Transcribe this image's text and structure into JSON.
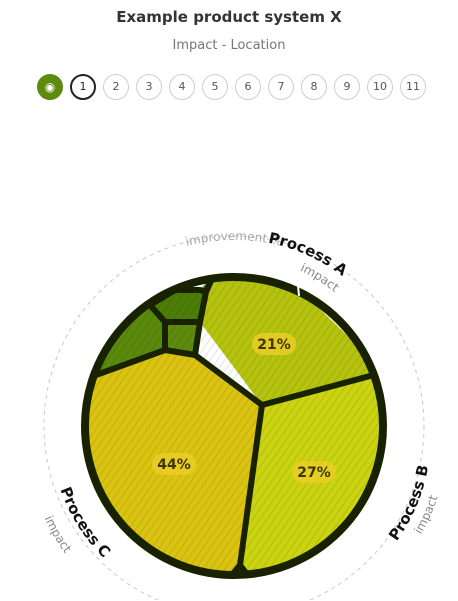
{
  "header": {
    "title": "Example product system X",
    "subtitle": "Impact - Location"
  },
  "stepper": {
    "home_icon": "target-icon",
    "steps": [
      "1",
      "2",
      "3",
      "4",
      "5",
      "6",
      "7",
      "8",
      "9",
      "10",
      "11"
    ],
    "active": "1"
  },
  "colors": {
    "ring_dark": "#182200",
    "green_dark": "#4c7d07",
    "green": "#5e8a0e",
    "olive": "#b5c30e",
    "yellow_green": "#cbd411",
    "yellow": "#dbc411"
  },
  "chart_data": {
    "type": "voronoi-treemap",
    "outer_ring_label": "improvement %",
    "groups": [
      {
        "name": "Process A",
        "sublabel": "impact",
        "share_pct": 21
      },
      {
        "name": "Process B",
        "sublabel": "impact",
        "share_pct": 27
      },
      {
        "name": "Process C",
        "sublabel": "impact",
        "share_pct": 44
      }
    ],
    "cell_labels": [
      "21%",
      "27%",
      "44%"
    ]
  }
}
